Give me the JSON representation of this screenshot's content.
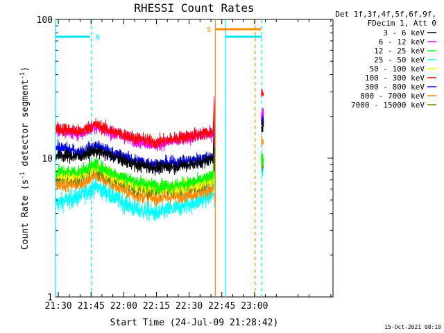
{
  "chart_data": {
    "type": "line",
    "title": "RHESSI Count Rates",
    "xlabel": "Start Time (24-Jul-09 21:28:42)",
    "ylabel_main": "Count Rate (s",
    "ylabel_sup": "-1",
    "ylabel_mid": " detector segment",
    "ylabel_sup2": "-1",
    "ylabel_end": ")",
    "y_scale": "log",
    "ylim": [
      1,
      100
    ],
    "y_ticks": [
      {
        "value": 1,
        "label": "1"
      },
      {
        "value": 10,
        "label": "10"
      },
      {
        "value": 100,
        "label": "100"
      }
    ],
    "x_range_min": [
      1288.7,
      1416
    ],
    "x_ticks": [
      {
        "value": 1290,
        "label": "21:30"
      },
      {
        "value": 1305,
        "label": "21:45"
      },
      {
        "value": 1320,
        "label": "22:00"
      },
      {
        "value": 1335,
        "label": "22:15"
      },
      {
        "value": 1350,
        "label": "22:30"
      },
      {
        "value": 1365,
        "label": "22:45"
      },
      {
        "value": 1380,
        "label": "23:00"
      }
    ],
    "legend_placement": "top-right",
    "legend_header": [
      "Det 1f,3f,4f,5f,6f,9f,",
      "FDecim 1, Att 0"
    ],
    "series": [
      {
        "name": "3 - 6 keV",
        "color": "#000000",
        "x": [
          1289,
          1300,
          1307,
          1315,
          1325,
          1335,
          1345,
          1354,
          1361,
          1361.5
        ],
        "y": [
          10.5,
          10.3,
          11.3,
          10.3,
          9.0,
          8.5,
          8.8,
          9.2,
          10.0,
          19
        ]
      },
      {
        "name": "6 - 12 keV",
        "color": "#ff00ff",
        "x": [
          1289,
          1300,
          1307,
          1315,
          1325,
          1335,
          1345,
          1354,
          1361,
          1361.5
        ],
        "y": [
          16.0,
          15.0,
          17.0,
          15.0,
          13.5,
          12.5,
          13.5,
          14.5,
          15.0,
          28
        ]
      },
      {
        "name": "12 - 25 keV",
        "color": "#00ff00",
        "x": [
          1289,
          1300,
          1307,
          1315,
          1325,
          1335,
          1345,
          1354,
          1361,
          1361.5
        ],
        "y": [
          8.0,
          8.0,
          9.0,
          7.8,
          6.8,
          6.3,
          6.4,
          6.8,
          7.4,
          16
        ]
      },
      {
        "name": "25 - 50 keV",
        "color": "#00ffff",
        "x": [
          1289,
          1300,
          1307,
          1315,
          1325,
          1335,
          1345,
          1354,
          1361,
          1361.5
        ],
        "y": [
          4.7,
          5.3,
          6.3,
          5.3,
          4.3,
          4.0,
          4.4,
          4.9,
          5.5,
          12
        ]
      },
      {
        "name": "50 - 100 keV",
        "color": "#ffff00",
        "x": [
          1289,
          1300,
          1307,
          1315,
          1325,
          1335,
          1345,
          1354,
          1361,
          1361.5
        ],
        "y": [
          7.5,
          7.6,
          8.6,
          7.4,
          6.4,
          6.0,
          6.1,
          6.5,
          7.0,
          14
        ]
      },
      {
        "name": "100 - 300 keV",
        "color": "#ff0000",
        "x": [
          1289,
          1300,
          1307,
          1315,
          1325,
          1335,
          1345,
          1354,
          1361,
          1361.5
        ],
        "y": [
          16.5,
          15.5,
          17.5,
          15.5,
          14.0,
          13.0,
          14.0,
          14.8,
          15.5,
          25
        ]
      },
      {
        "name": "300 - 800 keV",
        "color": "#0000ff",
        "x": [
          1289,
          1300,
          1307,
          1315,
          1325,
          1335,
          1345,
          1354,
          1361,
          1361.5
        ],
        "y": [
          12.0,
          11.0,
          12.2,
          10.8,
          9.6,
          9.0,
          9.3,
          9.8,
          10.3,
          20
        ]
      },
      {
        "name": "800 - 7000 keV",
        "color": "#ff8c00",
        "x": [
          1289,
          1300,
          1307,
          1315,
          1325,
          1335,
          1345,
          1354,
          1361,
          1361.5
        ],
        "y": [
          6.5,
          6.5,
          7.5,
          6.4,
          5.4,
          5.1,
          5.3,
          5.6,
          6.0,
          11
        ]
      },
      {
        "name": "7000 - 15000 keV",
        "color": "#808000",
        "x": [
          1289,
          1300,
          1307,
          1315,
          1325,
          1335,
          1345,
          1354,
          1361,
          1361.5
        ],
        "y": [
          7.0,
          7.2,
          8.2,
          7.0,
          6.0,
          5.7,
          5.9,
          6.2,
          6.7,
          13
        ]
      }
    ],
    "late_segment": {
      "x_range": [
        1383.2,
        1384.0
      ],
      "values": {
        "3 - 6 keV": 17,
        "6 - 12 keV": 21,
        "12 - 25 keV": 10,
        "25 - 50 keV": 8,
        "50 - 100 keV": 9.5,
        "100 - 300 keV": 29,
        "300 - 800 keV": 20,
        "800 - 7000 keV": 13,
        "7000 - 15000 keV": 9
      }
    },
    "annotations": [
      {
        "label": "N",
        "color": "#00e5ee",
        "bar_x": [
          1288.7,
          1304.5
        ],
        "y": 75,
        "end_x": 1305.2
      },
      {
        "label": "S",
        "color": "#ff8c00",
        "bar_x": [
          1362.0,
          1383.0
        ],
        "y": 85,
        "end_x": 1380.3
      },
      {
        "label": "",
        "color": "#00e5ee",
        "bar_x": [
          1366.7,
          1383.3
        ],
        "y": 75,
        "end_x": 1383.3
      }
    ],
    "vlines": [
      {
        "x": 1288.7,
        "color": "#00e5ee",
        "style": "solid"
      },
      {
        "x": 1305.2,
        "color": "#00e5ee",
        "style": "dashed"
      },
      {
        "x": 1362.0,
        "color": "#ff8c00",
        "style": "solid"
      },
      {
        "x": 1366.7,
        "color": "#00e5ee",
        "style": "solid"
      },
      {
        "x": 1380.3,
        "color": "#ff8c00",
        "style": "dashed"
      },
      {
        "x": 1383.3,
        "color": "#00e5ee",
        "style": "dashed"
      }
    ],
    "timestamp": "15-Oct-2021 08:10"
  }
}
